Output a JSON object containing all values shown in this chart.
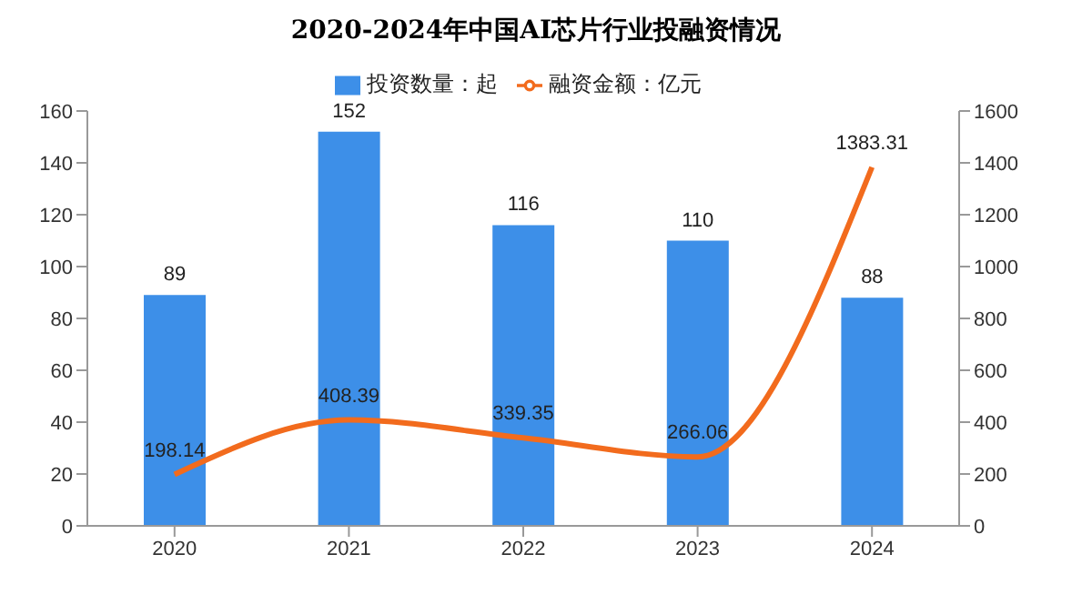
{
  "chart_data": {
    "type": "bar",
    "title": "2020-2024年中国AI芯片行业投融资情况",
    "categories": [
      "2020",
      "2021",
      "2022",
      "2023",
      "2024"
    ],
    "series": [
      {
        "name": "投资数量：起",
        "color": "#3d8fe8",
        "values": [
          89,
          152,
          116,
          110,
          88
        ]
      },
      {
        "name": "融资金额：亿元",
        "type": "line",
        "axis": "y2",
        "color": "#f26b1d",
        "values": [
          198.14,
          408.39,
          339.35,
          266.06,
          1383.31
        ]
      }
    ],
    "ylim": [
      0,
      160
    ],
    "yticks": [
      0,
      20,
      40,
      60,
      80,
      100,
      120,
      140,
      160
    ],
    "y2lim": [
      0,
      1600
    ],
    "y2ticks": [
      0,
      200,
      400,
      600,
      800,
      1000,
      1200,
      1400,
      1600
    ],
    "data_labels": true,
    "legend": "top",
    "marker": "none",
    "line_style": "solid"
  }
}
